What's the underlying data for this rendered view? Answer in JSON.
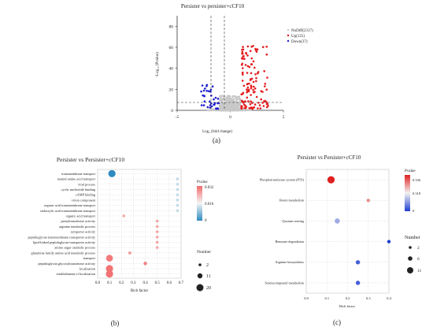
{
  "chart_data": [
    {
      "panel": "a",
      "type": "scatter",
      "title": "Persister vs persister+cCF10",
      "xlabel": "Log₂ (fold change)",
      "ylabel": "-Log₁₀ (Pvalue)",
      "xlim": [
        -5,
        5
      ],
      "ylim": [
        0,
        90
      ],
      "xticks": [
        "-5",
        "0",
        "5"
      ],
      "yticks": [
        "0",
        "20",
        "40",
        "60",
        "80"
      ],
      "threshold_x": [
        -1,
        1
      ],
      "threshold_y": 1.3,
      "grid": false,
      "legend_position": "right",
      "series": [
        {
          "name": "NoDiff(2317)",
          "color": "#c8c8c8"
        },
        {
          "name": "Up(125)",
          "color": "#e41a1c"
        },
        {
          "name": "Down(37)",
          "color": "#1f1fcf"
        }
      ]
    },
    {
      "panel": "b",
      "type": "scatter",
      "title": "Persister vs Persister+cCF10",
      "xlabel": "Rich factor",
      "xlim": [
        0,
        0.7
      ],
      "xticks": [
        "0.0",
        "0.1",
        "0.2",
        "0.3",
        "0.4",
        "0.5",
        "0.6",
        "0.7"
      ],
      "grid": true,
      "categories": [
        "transmembrane transport",
        "neutral amino acid transport",
        "viral process",
        "cyclic nucleotide binding",
        "cAMP binding",
        "virion component",
        "organic acid transmembrane transport",
        "carboxylic acid transmembrane transport",
        "organic acid transport",
        "prenyltransferase activity",
        "arginine metabolic process",
        "symporter activity",
        "peptidoglycan transmembrane transporter activity",
        "lipid-linked peptidoglycan transporter activity",
        "amino sugar catabolic process",
        "glutamine family amino acid metabolic process",
        "transport",
        "peptidoglycan glycosyltransferase activity",
        "localization",
        "establishment of localization"
      ],
      "points": [
        {
          "x": 0.12,
          "pvalue": 0.0,
          "number": 20
        },
        {
          "x": 0.67,
          "pvalue": 0.012,
          "number": 2
        },
        {
          "x": 0.67,
          "pvalue": 0.012,
          "number": 2
        },
        {
          "x": 0.67,
          "pvalue": 0.012,
          "number": 2
        },
        {
          "x": 0.67,
          "pvalue": 0.012,
          "number": 2
        },
        {
          "x": 0.67,
          "pvalue": 0.012,
          "number": 2
        },
        {
          "x": 0.67,
          "pvalue": 0.012,
          "number": 2
        },
        {
          "x": 0.67,
          "pvalue": 0.012,
          "number": 2
        },
        {
          "x": 0.22,
          "pvalue": 0.024,
          "number": 2
        },
        {
          "x": 0.5,
          "pvalue": 0.025,
          "number": 2
        },
        {
          "x": 0.5,
          "pvalue": 0.025,
          "number": 2
        },
        {
          "x": 0.5,
          "pvalue": 0.025,
          "number": 2
        },
        {
          "x": 0.5,
          "pvalue": 0.025,
          "number": 2
        },
        {
          "x": 0.5,
          "pvalue": 0.025,
          "number": 2
        },
        {
          "x": 0.5,
          "pvalue": 0.025,
          "number": 2
        },
        {
          "x": 0.27,
          "pvalue": 0.026,
          "number": 3
        },
        {
          "x": 0.1,
          "pvalue": 0.03,
          "number": 18
        },
        {
          "x": 0.4,
          "pvalue": 0.029,
          "number": 5
        },
        {
          "x": 0.1,
          "pvalue": 0.031,
          "number": 20
        },
        {
          "x": 0.1,
          "pvalue": 0.031,
          "number": 20
        }
      ],
      "color_legend": {
        "title": "Pvalue",
        "ticks": [
          "0.032",
          "0.016",
          "0"
        ],
        "range": [
          0,
          0.032
        ],
        "low_color": "#2e8bc0",
        "high_color": "#f26a6a"
      },
      "size_legend": {
        "title": "Number",
        "values": [
          2,
          11,
          20
        ]
      }
    },
    {
      "panel": "c",
      "type": "scatter",
      "title": "Persister vs Persister+cCF10",
      "xlabel": "Rich factor",
      "xlim": [
        0,
        0.4
      ],
      "xticks": [
        "0.0",
        "0.1",
        "0.2",
        "0.3",
        "0.4"
      ],
      "grid": true,
      "categories": [
        "Phosphotransferase system (PTS)",
        "Boron metabolism",
        "Quorum sensing",
        "Benzoate degradation",
        "Arginine biosynthesis",
        "Selenocompound metabolism"
      ],
      "points": [
        {
          "x": 0.12,
          "pvalue": 0.336,
          "number": 11
        },
        {
          "x": 0.3,
          "pvalue": 0.25,
          "number": 2
        },
        {
          "x": 0.15,
          "pvalue": 0.1,
          "number": 6
        },
        {
          "x": 0.4,
          "pvalue": 0.0,
          "number": 2
        },
        {
          "x": 0.25,
          "pvalue": 0.03,
          "number": 4
        },
        {
          "x": 0.25,
          "pvalue": 0.03,
          "number": 4
        }
      ],
      "color_legend": {
        "title": "Pvalue",
        "ticks": [
          "0.336",
          "0.318",
          "0"
        ],
        "range": [
          0,
          0.336
        ],
        "low_color": "#1f3fcf",
        "high_color": "#e02020"
      },
      "size_legend": {
        "title": "Number",
        "values": [
          2,
          6,
          11
        ]
      }
    }
  ],
  "labels": {
    "a": "(a)",
    "b": "(b)",
    "c": "(c)"
  }
}
